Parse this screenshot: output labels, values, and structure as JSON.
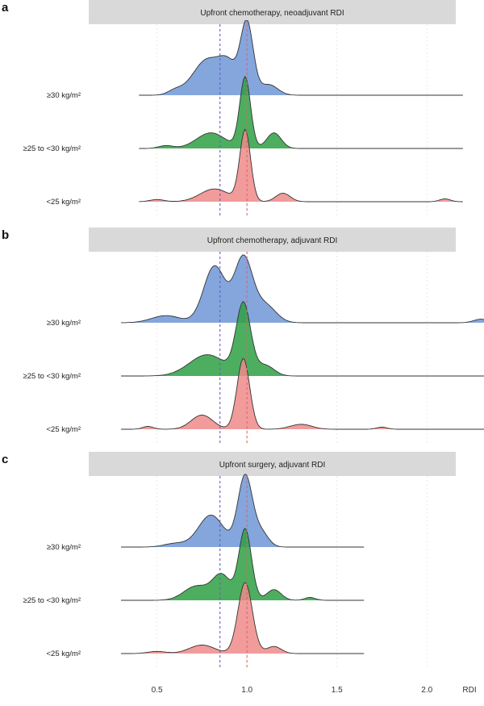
{
  "figure": {
    "x_axis_title": "RDI",
    "x_ticks": [
      0.5,
      1.0,
      1.5,
      2.0
    ],
    "x_tick_labels": [
      "0.5",
      "1.0",
      "1.5",
      "2.0"
    ],
    "x_range": [
      0.3,
      2.25
    ],
    "reference_lines": [
      {
        "x": 0.85,
        "color": "#6a5acd",
        "style": "dashed"
      },
      {
        "x": 1.0,
        "color": "#e06666",
        "style": "dashed"
      }
    ],
    "grid": "vertical dotted",
    "colors": {
      "bmi_30plus": "#6f97d6",
      "bmi_25_30": "#2ea043",
      "bmi_lt25": "#ef8a8a",
      "strip_bg": "#d9d9d9"
    }
  },
  "chart_data": [
    {
      "type": "area",
      "panel_label": "a",
      "strip_title": "Upfront chemotherapy, neoadjuvant RDI",
      "series": [
        {
          "name": "≥30 kg/m²",
          "color": "#6f97d6",
          "x_range": [
            0.4,
            2.2
          ],
          "peaks": [
            {
              "x": 0.6,
              "height": 0.06,
              "width": 0.04
            },
            {
              "x": 0.78,
              "height": 0.5,
              "width": 0.08
            },
            {
              "x": 0.9,
              "height": 0.35,
              "width": 0.05
            },
            {
              "x": 1.0,
              "height": 1.0,
              "width": 0.035
            },
            {
              "x": 1.12,
              "height": 0.15,
              "width": 0.05
            }
          ]
        },
        {
          "name": "≥25 to <30 kg/m²",
          "color": "#2ea043",
          "x_range": [
            0.4,
            2.2
          ],
          "peaks": [
            {
              "x": 0.55,
              "height": 0.04,
              "width": 0.04
            },
            {
              "x": 0.8,
              "height": 0.22,
              "width": 0.08
            },
            {
              "x": 0.99,
              "height": 1.0,
              "width": 0.03
            },
            {
              "x": 1.15,
              "height": 0.22,
              "width": 0.04
            }
          ]
        },
        {
          "name": "<25 kg/m²",
          "color": "#ef8a8a",
          "x_range": [
            0.4,
            2.2
          ],
          "peaks": [
            {
              "x": 0.5,
              "height": 0.03,
              "width": 0.04
            },
            {
              "x": 0.82,
              "height": 0.18,
              "width": 0.08
            },
            {
              "x": 0.99,
              "height": 1.0,
              "width": 0.03
            },
            {
              "x": 1.2,
              "height": 0.12,
              "width": 0.04
            },
            {
              "x": 2.1,
              "height": 0.04,
              "width": 0.03
            }
          ]
        }
      ]
    },
    {
      "type": "area",
      "panel_label": "b",
      "strip_title": "Upfront chemotherapy, adjuvant RDI",
      "series": [
        {
          "name": "≥30 kg/m²",
          "color": "#6f97d6",
          "x_range": [
            0.3,
            2.4
          ],
          "peaks": [
            {
              "x": 0.55,
              "height": 0.1,
              "width": 0.08
            },
            {
              "x": 0.82,
              "height": 0.8,
              "width": 0.06
            },
            {
              "x": 0.98,
              "height": 0.9,
              "width": 0.05
            },
            {
              "x": 1.1,
              "height": 0.25,
              "width": 0.06
            },
            {
              "x": 2.3,
              "height": 0.05,
              "width": 0.04
            }
          ]
        },
        {
          "name": "≥25 to <30 kg/m²",
          "color": "#2ea043",
          "x_range": [
            0.3,
            2.4
          ],
          "peaks": [
            {
              "x": 0.78,
              "height": 0.3,
              "width": 0.1
            },
            {
              "x": 0.98,
              "height": 1.0,
              "width": 0.04
            },
            {
              "x": 1.1,
              "height": 0.15,
              "width": 0.05
            }
          ]
        },
        {
          "name": "<25 kg/m²",
          "color": "#ef8a8a",
          "x_range": [
            0.3,
            2.4
          ],
          "peaks": [
            {
              "x": 0.45,
              "height": 0.04,
              "width": 0.03
            },
            {
              "x": 0.75,
              "height": 0.2,
              "width": 0.06
            },
            {
              "x": 0.98,
              "height": 1.0,
              "width": 0.035
            },
            {
              "x": 1.3,
              "height": 0.07,
              "width": 0.06
            },
            {
              "x": 1.75,
              "height": 0.03,
              "width": 0.03
            }
          ]
        }
      ]
    },
    {
      "type": "area",
      "panel_label": "c",
      "strip_title": "Upfront surgery, adjuvant RDI",
      "series": [
        {
          "name": "≥30 kg/m²",
          "color": "#6f97d6",
          "x_range": [
            0.3,
            1.65
          ],
          "peaks": [
            {
              "x": 0.6,
              "height": 0.05,
              "width": 0.06
            },
            {
              "x": 0.8,
              "height": 0.45,
              "width": 0.07
            },
            {
              "x": 0.99,
              "height": 1.0,
              "width": 0.04
            },
            {
              "x": 1.08,
              "height": 0.2,
              "width": 0.04
            }
          ]
        },
        {
          "name": "≥25 to <30 kg/m²",
          "color": "#2ea043",
          "x_range": [
            0.3,
            1.65
          ],
          "peaks": [
            {
              "x": 0.72,
              "height": 0.2,
              "width": 0.07
            },
            {
              "x": 0.86,
              "height": 0.35,
              "width": 0.05
            },
            {
              "x": 0.99,
              "height": 1.0,
              "width": 0.035
            },
            {
              "x": 1.15,
              "height": 0.15,
              "width": 0.04
            },
            {
              "x": 1.35,
              "height": 0.04,
              "width": 0.03
            }
          ]
        },
        {
          "name": "<25 kg/m²",
          "color": "#ef8a8a",
          "x_range": [
            0.3,
            1.65
          ],
          "peaks": [
            {
              "x": 0.5,
              "height": 0.03,
              "width": 0.05
            },
            {
              "x": 0.75,
              "height": 0.12,
              "width": 0.07
            },
            {
              "x": 0.99,
              "height": 1.0,
              "width": 0.04
            },
            {
              "x": 1.15,
              "height": 0.1,
              "width": 0.04
            }
          ]
        }
      ]
    }
  ]
}
